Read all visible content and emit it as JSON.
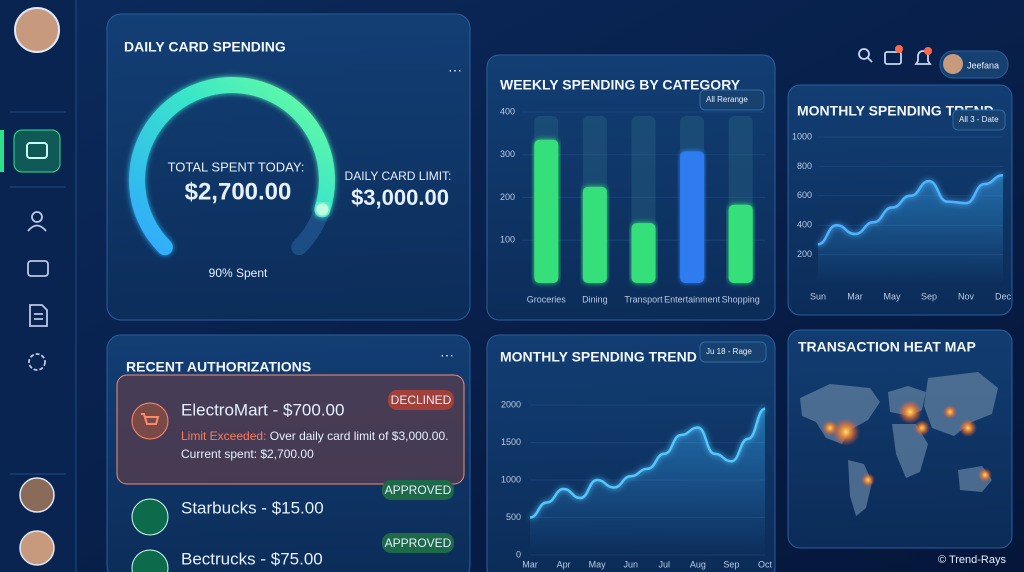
{
  "header": {
    "user": "Jeefana"
  },
  "daily_card": {
    "title": "DAILY CARD SPENDING",
    "total_label": "TOTAL SPENT TODAY:",
    "total": "$2,700.00",
    "limit_label": "DAILY CARD LIMIT:",
    "limit": "$3,000.00",
    "gauge_percent": 90,
    "gauge_label": "90% Spent"
  },
  "authorizations": {
    "title": "RECENT AUTHORIZATIONS",
    "items": [
      {
        "merchant": "ElectroMart - $700.00",
        "status": "DECLINED",
        "reason_label": "Limit Exceeded:",
        "reason": "Over daily card limit of $3,000.00.",
        "detail": "Current spent: $2,700.00"
      },
      {
        "merchant": "Starbucks - $15.00",
        "status": "APPROVED"
      },
      {
        "merchant": "Bectrucks - $75.00",
        "status": "APPROVED"
      }
    ]
  },
  "heat_map": {
    "title": "TRANSACTION HEAT MAP"
  },
  "watermark": "© Trend-Rays",
  "chart_data": [
    {
      "type": "bar",
      "title": "WEEKLY SPENDING BY CATEGORY",
      "filter": "All Rerange",
      "categories": [
        "Groceries",
        "Dining",
        "Transport",
        "Entertainment",
        "Shopping"
      ],
      "values": [
        335,
        225,
        140,
        308,
        183
      ],
      "colors": [
        "#34e07a",
        "#34e07a",
        "#34e07a",
        "#2f7cf0",
        "#34e07a"
      ],
      "ylim": [
        0,
        400
      ],
      "yticks": [
        100,
        200,
        300,
        400
      ]
    },
    {
      "type": "line",
      "title": "MONTHLY SPENDING TREND",
      "filter": "All 3 - Date",
      "categories": [
        "Sun",
        null,
        "Mar",
        null,
        "May",
        null,
        "Sep",
        null,
        "Nov",
        null,
        "Dec"
      ],
      "values": [
        270,
        400,
        340,
        420,
        520,
        600,
        700,
        560,
        550,
        680,
        740
      ],
      "color": "#4fb4ff",
      "ylim": [
        0,
        1000
      ],
      "yticks": [
        200,
        400,
        600,
        800,
        1000
      ]
    },
    {
      "type": "line",
      "title": "MONTHLY SPENDING TREND",
      "filter": "Ju 18 - Rage",
      "categories": [
        "Mar",
        null,
        "Apr",
        null,
        "May",
        null,
        "Jun",
        null,
        "Jul",
        null,
        "Aug",
        null,
        "Sep",
        null,
        "Oct"
      ],
      "values": [
        500,
        700,
        880,
        760,
        1000,
        900,
        1050,
        1150,
        1350,
        1600,
        1700,
        1350,
        1250,
        1550,
        1950
      ],
      "color": "#53c8ff",
      "ylim": [
        0,
        2000
      ],
      "yticks": [
        0,
        500,
        1000,
        1500,
        2000
      ]
    }
  ]
}
